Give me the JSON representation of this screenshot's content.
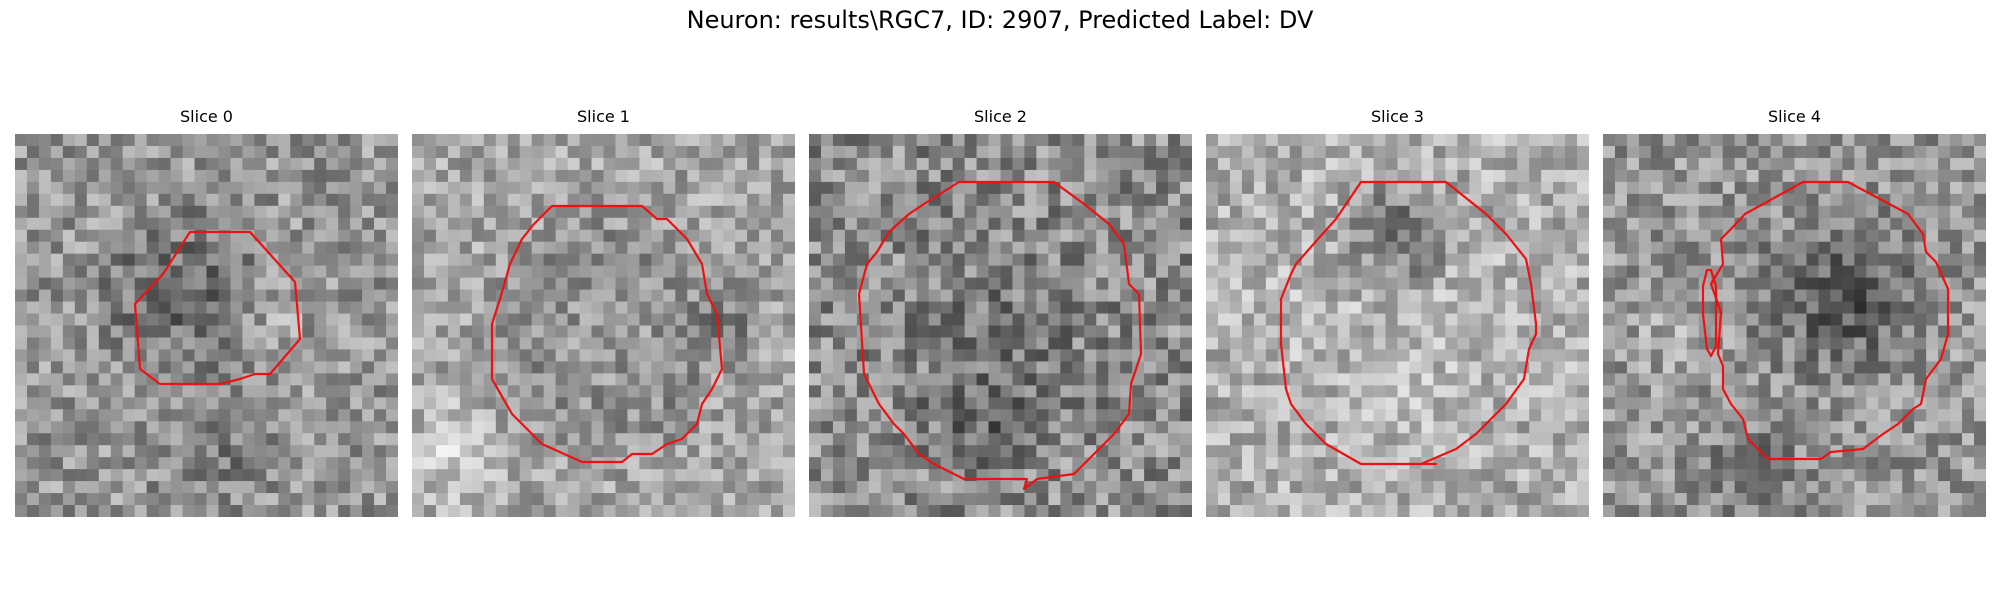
{
  "figure": {
    "title": "Neuron: results\\RGC7, ID: 2907, Predicted Label: DV",
    "slices": [
      {
        "title": "Slice 0"
      },
      {
        "title": "Slice 1"
      },
      {
        "title": "Slice 2"
      },
      {
        "title": "Slice 3"
      },
      {
        "title": "Slice 4"
      }
    ]
  },
  "colors": {
    "contour": "#ee1111",
    "background": "#ffffff"
  }
}
